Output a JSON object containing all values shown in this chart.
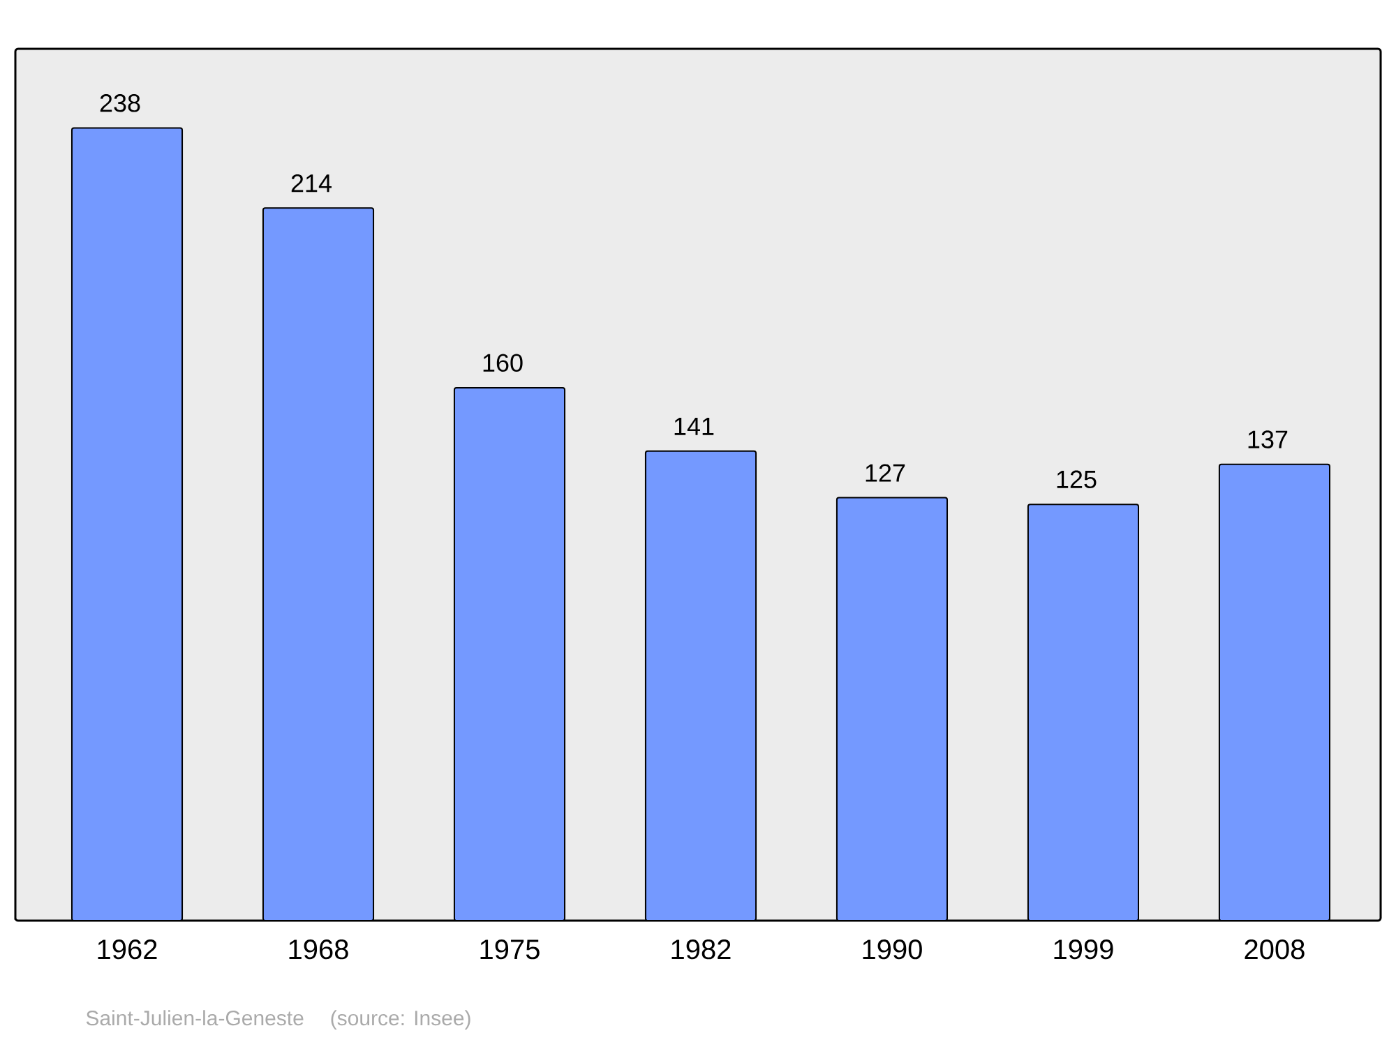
{
  "chart_data": {
    "type": "bar",
    "categories": [
      "1962",
      "1968",
      "1975",
      "1982",
      "1990",
      "1999",
      "2008"
    ],
    "values": [
      238,
      214,
      160,
      141,
      127,
      125,
      137
    ],
    "color": "#7499ff",
    "data_labels": true,
    "annotations": [
      "Saint-Julien-la-Geneste",
      "(source: Insee)"
    ]
  }
}
